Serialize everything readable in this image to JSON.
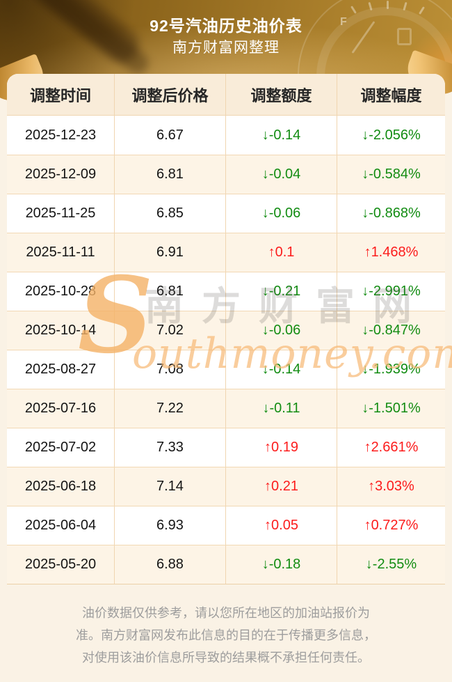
{
  "page": {
    "title": "92号汽油历史油价表",
    "subtitle": "南方财富网整理"
  },
  "header_art": {
    "gauge_full_label": "F"
  },
  "table": {
    "columns": [
      "调整时间",
      "调整后价格",
      "调整额度",
      "调整幅度"
    ],
    "rows": [
      {
        "date": "2025-12-23",
        "price": "6.67",
        "change": "↓-0.14",
        "pct": "↓-2.056%",
        "direction": "down"
      },
      {
        "date": "2025-12-09",
        "price": "6.81",
        "change": "↓-0.04",
        "pct": "↓-0.584%",
        "direction": "down"
      },
      {
        "date": "2025-11-25",
        "price": "6.85",
        "change": "↓-0.06",
        "pct": "↓-0.868%",
        "direction": "down"
      },
      {
        "date": "2025-11-11",
        "price": "6.91",
        "change": "↑0.1",
        "pct": "↑1.468%",
        "direction": "up"
      },
      {
        "date": "2025-10-28",
        "price": "6.81",
        "change": "↓-0.21",
        "pct": "↓-2.991%",
        "direction": "down"
      },
      {
        "date": "2025-10-14",
        "price": "7.02",
        "change": "↓-0.06",
        "pct": "↓-0.847%",
        "direction": "down"
      },
      {
        "date": "2025-08-27",
        "price": "7.08",
        "change": "↓-0.14",
        "pct": "↓-1.939%",
        "direction": "down"
      },
      {
        "date": "2025-07-16",
        "price": "7.22",
        "change": "↓-0.11",
        "pct": "↓-1.501%",
        "direction": "down"
      },
      {
        "date": "2025-07-02",
        "price": "7.33",
        "change": "↑0.19",
        "pct": "↑2.661%",
        "direction": "up"
      },
      {
        "date": "2025-06-18",
        "price": "7.14",
        "change": "↑0.21",
        "pct": "↑3.03%",
        "direction": "up"
      },
      {
        "date": "2025-06-04",
        "price": "6.93",
        "change": "↑0.05",
        "pct": "↑0.727%",
        "direction": "up"
      },
      {
        "date": "2025-05-20",
        "price": "6.88",
        "change": "↓-0.18",
        "pct": "↓-2.55%",
        "direction": "down"
      }
    ]
  },
  "watermark": {
    "initial": "S",
    "cn": "南方财富网",
    "domain": "outhmoney.com"
  },
  "footer": {
    "lines": [
      "油价数据仅供参考，请以您所在地区的加油站报价为",
      "准。南方财富网发布此信息的目的在于传播更多信息，",
      "对使用该油价信息所导致的结果概不承担任何责任。"
    ]
  },
  "colors": {
    "up_red": "#fc1c1c",
    "down_green": "#128c12",
    "banner_gold_dark": "#7a5414",
    "banner_gold_light": "#bb8f36",
    "table_header_bg": "#f9ecd9",
    "row_alt_bg": "#fdf4e6",
    "grid_border": "#f0d5b0",
    "page_bg": "#faf2e5",
    "disclaimer_gray": "#9d9d9d",
    "watermark_orange": "#f4b266"
  },
  "chart_data": {
    "type": "table",
    "title": "92号汽油历史油价表",
    "subtitle": "南方财富网整理",
    "columns": [
      "调整时间",
      "调整后价格",
      "调整额度",
      "调整幅度"
    ],
    "rows": [
      [
        "2025-12-23",
        "6.67",
        "↓-0.14",
        "↓-2.056%"
      ],
      [
        "2025-12-09",
        "6.81",
        "↓-0.04",
        "↓-0.584%"
      ],
      [
        "2025-11-25",
        "6.85",
        "↓-0.06",
        "↓-0.868%"
      ],
      [
        "2025-11-11",
        "6.91",
        "↑0.1",
        "↑1.468%"
      ],
      [
        "2025-10-28",
        "6.81",
        "↓-0.21",
        "↓-2.991%"
      ],
      [
        "2025-10-14",
        "7.02",
        "↓-0.06",
        "↓-0.847%"
      ],
      [
        "2025-08-27",
        "7.08",
        "↓-0.14",
        "↓-1.939%"
      ],
      [
        "2025-07-16",
        "7.22",
        "↓-0.11",
        "↓-1.501%"
      ],
      [
        "2025-07-02",
        "7.33",
        "↑0.19",
        "↑2.661%"
      ],
      [
        "2025-06-18",
        "7.14",
        "↑0.21",
        "↑3.03%"
      ],
      [
        "2025-06-04",
        "6.93",
        "↑0.05",
        "↑0.727%"
      ],
      [
        "2025-05-20",
        "6.88",
        "↓-0.18",
        "↓-2.55%"
      ]
    ]
  }
}
